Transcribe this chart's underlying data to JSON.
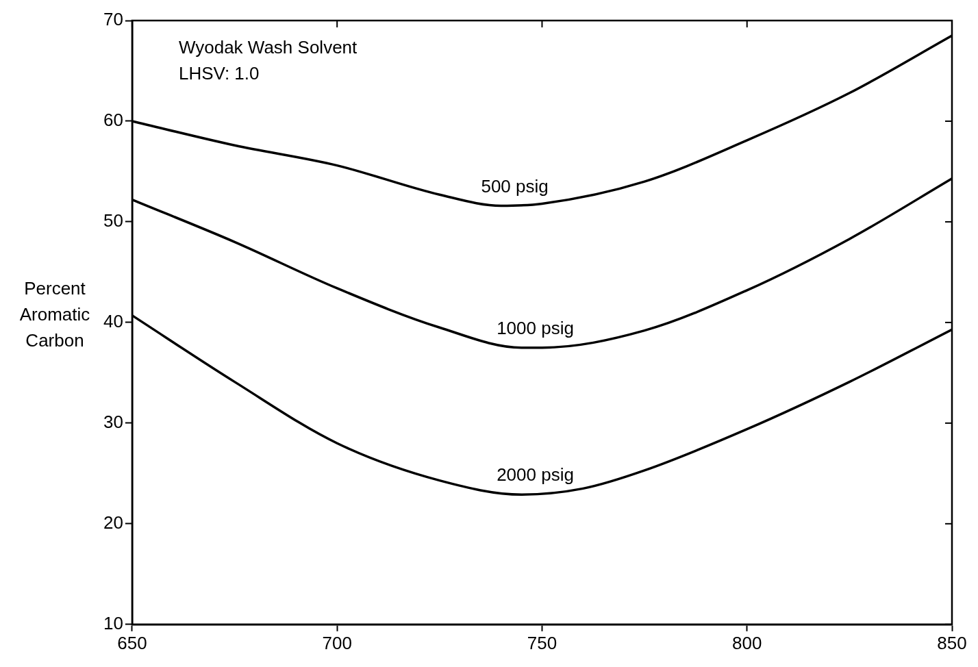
{
  "chart_data": {
    "type": "line",
    "ylabel": "Percent Aromatic Carbon",
    "xlim": [
      650,
      850
    ],
    "xticks": [
      650,
      700,
      750,
      800,
      850
    ],
    "ylim": [
      10,
      70
    ],
    "yticks": [
      10,
      20,
      30,
      40,
      50,
      60,
      70
    ],
    "grid": false,
    "legend": false,
    "marker": "none",
    "line_style": "solid",
    "series": [
      {
        "name": "500 psig",
        "color": "#000000",
        "x": [
          650,
          675,
          700,
          725,
          740,
          750,
          775,
          800,
          825,
          850
        ],
        "values": [
          60,
          57.6,
          55.6,
          52.7,
          51.6,
          51.8,
          54,
          58.1,
          62.8,
          68.5
        ]
      },
      {
        "name": "1000 psig",
        "color": "#000000",
        "x": [
          650,
          675,
          700,
          725,
          745,
          750,
          775,
          800,
          825,
          850
        ],
        "values": [
          52.2,
          48,
          43.4,
          39.5,
          37.5,
          37.5,
          39.2,
          43.2,
          48.3,
          54.3
        ]
      },
      {
        "name": "2000 psig",
        "color": "#000000",
        "x": [
          650,
          675,
          700,
          725,
          745,
          760,
          775,
          800,
          825,
          850
        ],
        "values": [
          40.7,
          34.1,
          28,
          24.3,
          22.9,
          23.5,
          25.3,
          29.4,
          34.1,
          39.3
        ]
      }
    ],
    "annotations": [
      "Wyodak Wash Solvent",
      "LHSV: 1.0"
    ]
  }
}
